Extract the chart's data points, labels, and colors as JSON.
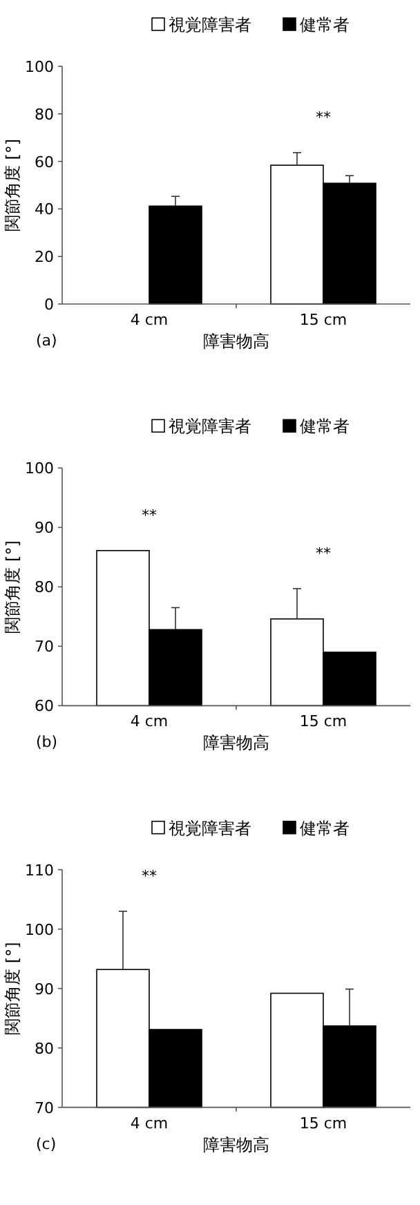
{
  "chart_data": [
    {
      "type": "bar",
      "categories": [
        "4 cm",
        "15 cm"
      ],
      "xlabel": "障害物高",
      "ylabel": "関節角度 [°]",
      "ylim": [
        0,
        100
      ],
      "yticks": [
        0,
        20,
        40,
        60,
        80,
        100
      ],
      "legend": "top",
      "grid": false,
      "series": [
        {
          "name": "視覚障害者",
          "color": "#ffffff",
          "values": [
            null,
            58.4
          ],
          "errors": [
            null,
            [
              58.4,
              63.7
            ]
          ]
        },
        {
          "name": "健常者",
          "color": "#000000",
          "values": [
            41.2,
            50.8
          ],
          "errors": [
            [
              41.2,
              45.3
            ],
            [
              50.8,
              54.0
            ]
          ]
        }
      ],
      "annotations": [
        "**",
        "(a)"
      ]
    },
    {
      "type": "bar",
      "categories": [
        "4 cm",
        "15 cm"
      ],
      "xlabel": "障害物高",
      "ylabel": "関節角度 [°]",
      "ylim": [
        60,
        100
      ],
      "yticks": [
        60,
        70,
        80,
        90,
        100
      ],
      "legend": "top",
      "grid": false,
      "series": [
        {
          "name": "視覚障害者",
          "color": "#ffffff",
          "values": [
            86.1,
            74.6
          ],
          "errors": [
            null,
            [
              74.6,
              79.7
            ]
          ]
        },
        {
          "name": "健常者",
          "color": "#000000",
          "values": [
            72.8,
            69.0
          ],
          "errors": [
            [
              72.8,
              76.5
            ],
            null
          ]
        }
      ],
      "annotations": [
        "**",
        "**",
        "(b)"
      ]
    },
    {
      "type": "bar",
      "categories": [
        "4 cm",
        "15 cm"
      ],
      "xlabel": "障害物高",
      "ylabel": "関節角度 [°]",
      "ylim": [
        70,
        110
      ],
      "yticks": [
        70,
        80,
        90,
        100,
        110
      ],
      "legend": "top",
      "grid": false,
      "series": [
        {
          "name": "視覚障害者",
          "color": "#ffffff",
          "values": [
            93.2,
            89.2
          ],
          "errors": [
            [
              93.2,
              103.0
            ],
            null
          ]
        },
        {
          "name": "健常者",
          "color": "#000000",
          "values": [
            83.1,
            83.7
          ],
          "errors": [
            null,
            [
              83.7,
              89.9
            ]
          ]
        }
      ],
      "annotations": [
        "**",
        "(c)"
      ]
    }
  ]
}
